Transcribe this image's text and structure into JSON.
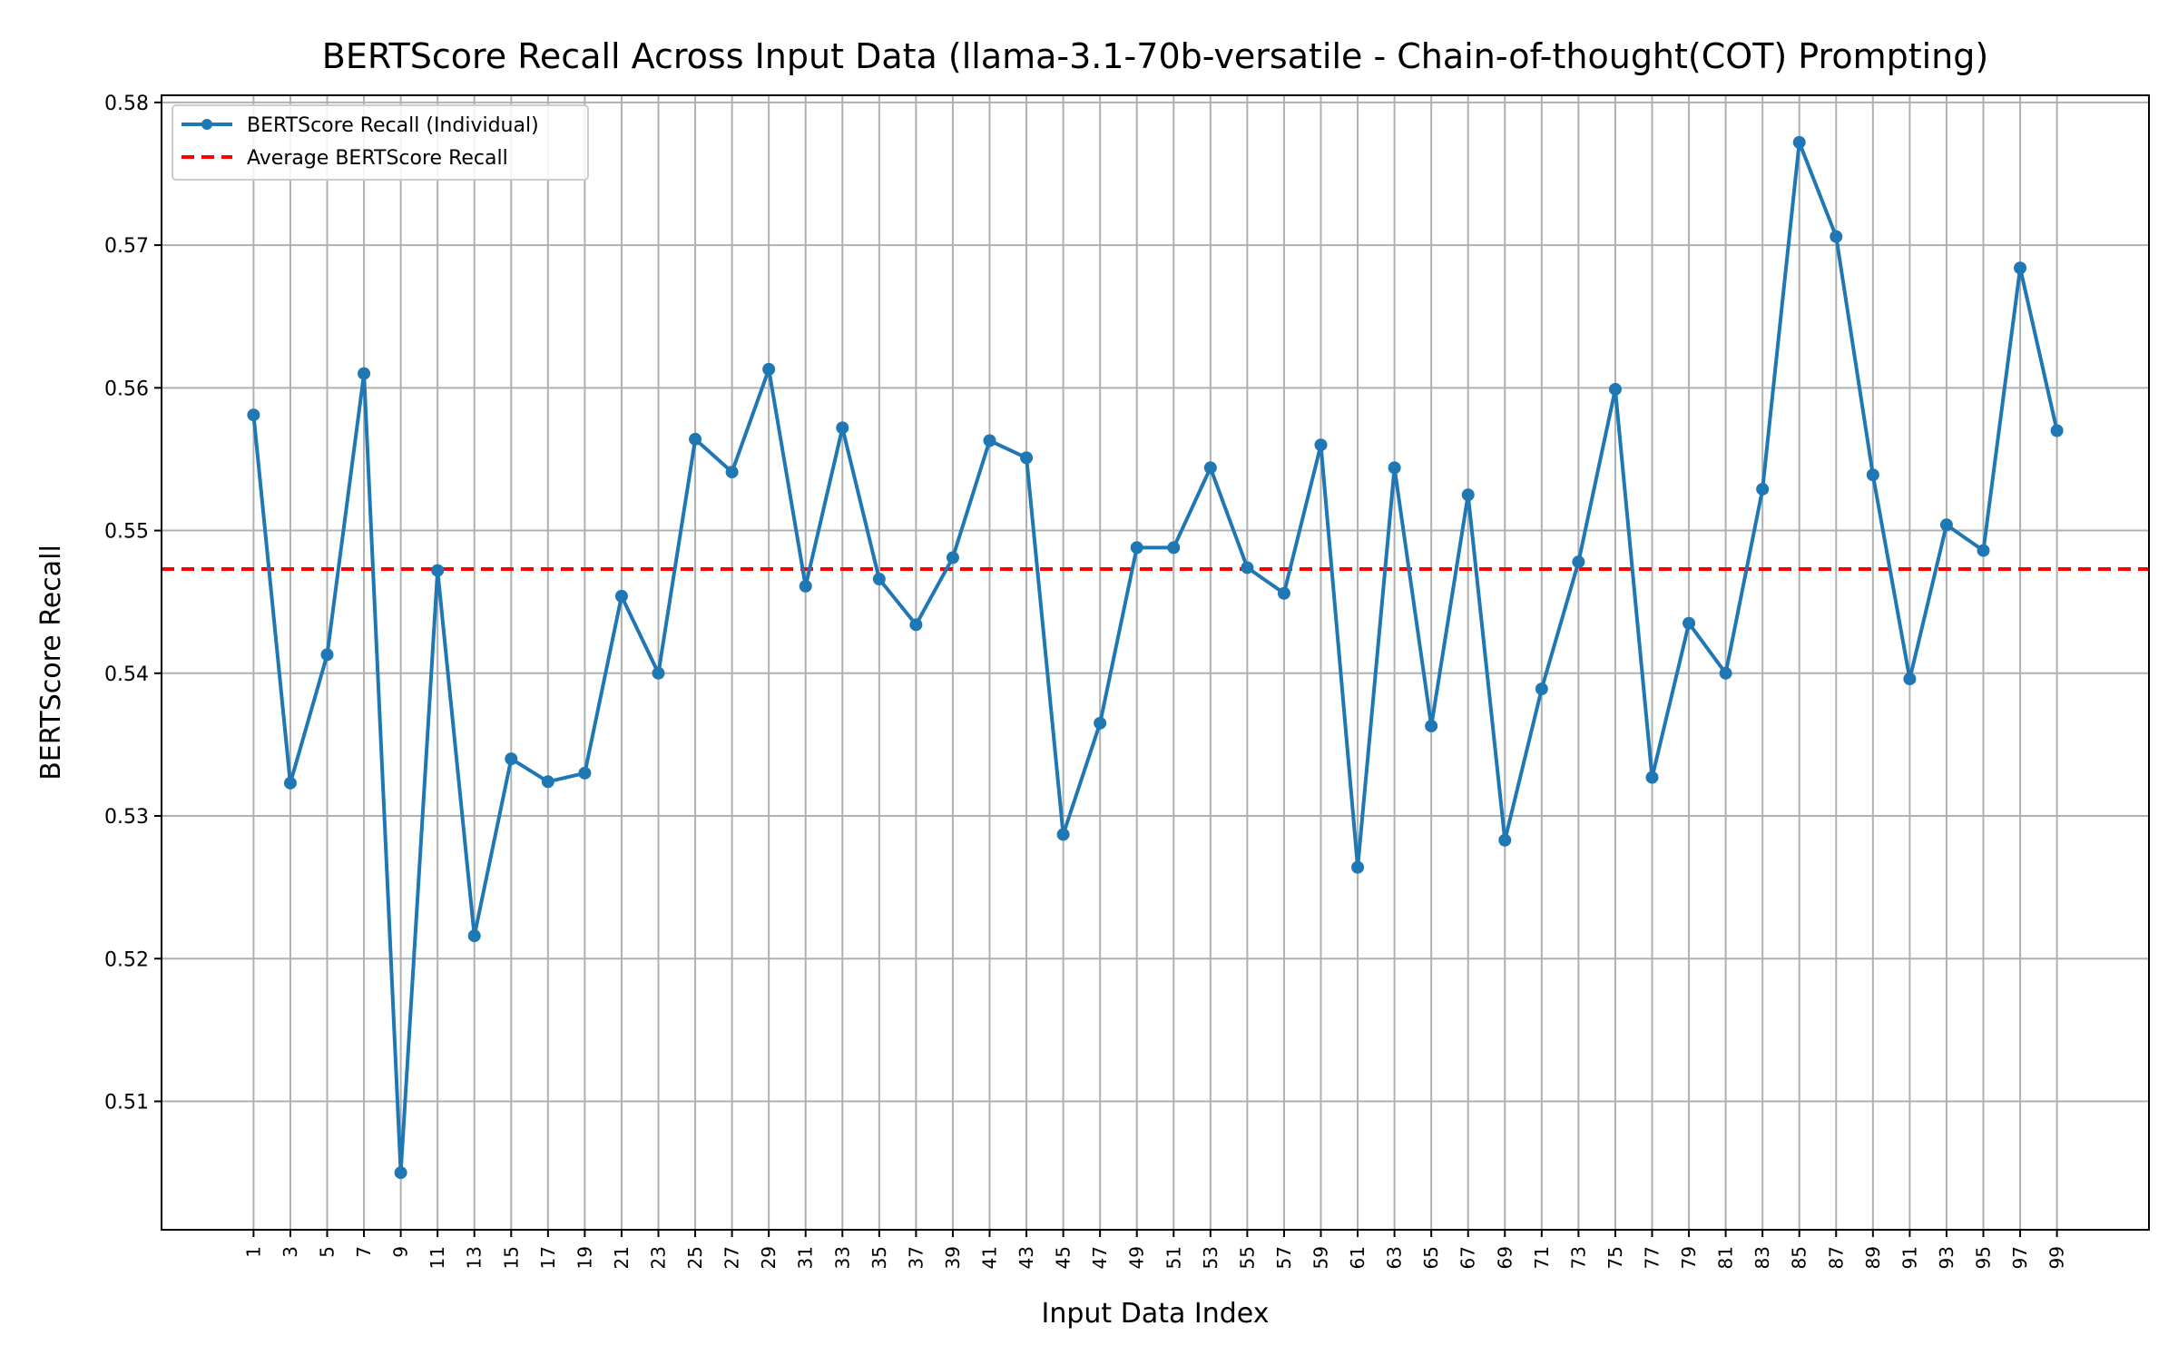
{
  "chart_data": {
    "type": "line",
    "title": "BERTScore Recall Across Input Data (llama-3.1-70b-versatile - Chain-of-thought(COT) Prompting)",
    "xlabel": "Input Data Index",
    "ylabel": "BERTScore Recall",
    "ylim": [
      0.501,
      0.5805
    ],
    "xlim": [
      -4,
      104
    ],
    "grid": true,
    "legend_position": "top-left",
    "yticks": [
      0.51,
      0.52,
      0.53,
      0.54,
      0.55,
      0.56,
      0.57,
      0.58
    ],
    "ytick_labels": [
      "0.51",
      "0.52",
      "0.53",
      "0.54",
      "0.55",
      "0.56",
      "0.57",
      "0.58"
    ],
    "x": [
      1,
      3,
      5,
      7,
      9,
      11,
      13,
      15,
      17,
      19,
      21,
      23,
      25,
      27,
      29,
      31,
      33,
      35,
      37,
      39,
      41,
      43,
      45,
      47,
      49,
      51,
      53,
      55,
      57,
      59,
      61,
      63,
      65,
      67,
      69,
      71,
      73,
      75,
      77,
      79,
      81,
      83,
      85,
      87,
      89,
      91,
      93,
      95,
      97,
      99
    ],
    "xtick_labels": [
      "1",
      "3",
      "5",
      "7",
      "9",
      "11",
      "13",
      "15",
      "17",
      "19",
      "21",
      "23",
      "25",
      "27",
      "29",
      "31",
      "33",
      "35",
      "37",
      "39",
      "41",
      "43",
      "45",
      "47",
      "49",
      "51",
      "53",
      "55",
      "57",
      "59",
      "61",
      "63",
      "65",
      "67",
      "69",
      "71",
      "73",
      "75",
      "77",
      "79",
      "81",
      "83",
      "85",
      "87",
      "89",
      "91",
      "93",
      "95",
      "97",
      "99"
    ],
    "series": [
      {
        "name": "BERTScore Recall (Individual)",
        "color": "#1f77b4",
        "style": "solid-with-markers",
        "values": [
          0.5581,
          0.5323,
          0.5413,
          0.561,
          0.505,
          0.5472,
          0.5216,
          0.534,
          0.5324,
          0.533,
          0.5454,
          0.54,
          0.5564,
          0.5541,
          0.5613,
          0.5461,
          0.5572,
          0.5466,
          0.5434,
          0.5481,
          0.5563,
          0.5551,
          0.5287,
          0.5365,
          0.5488,
          0.5488,
          0.5544,
          0.5474,
          0.5456,
          0.556,
          0.5264,
          0.5544,
          0.5363,
          0.5525,
          0.5283,
          0.5389,
          0.5478,
          0.5599,
          0.5327,
          0.5435,
          0.54,
          0.5529,
          0.5772,
          0.5706,
          0.5539,
          0.5396,
          0.5504,
          0.5486,
          0.5684,
          0.557
        ]
      },
      {
        "name": "Average BERTScore Recall",
        "color": "#ff0000",
        "style": "dashed",
        "value": 0.5473
      }
    ]
  }
}
